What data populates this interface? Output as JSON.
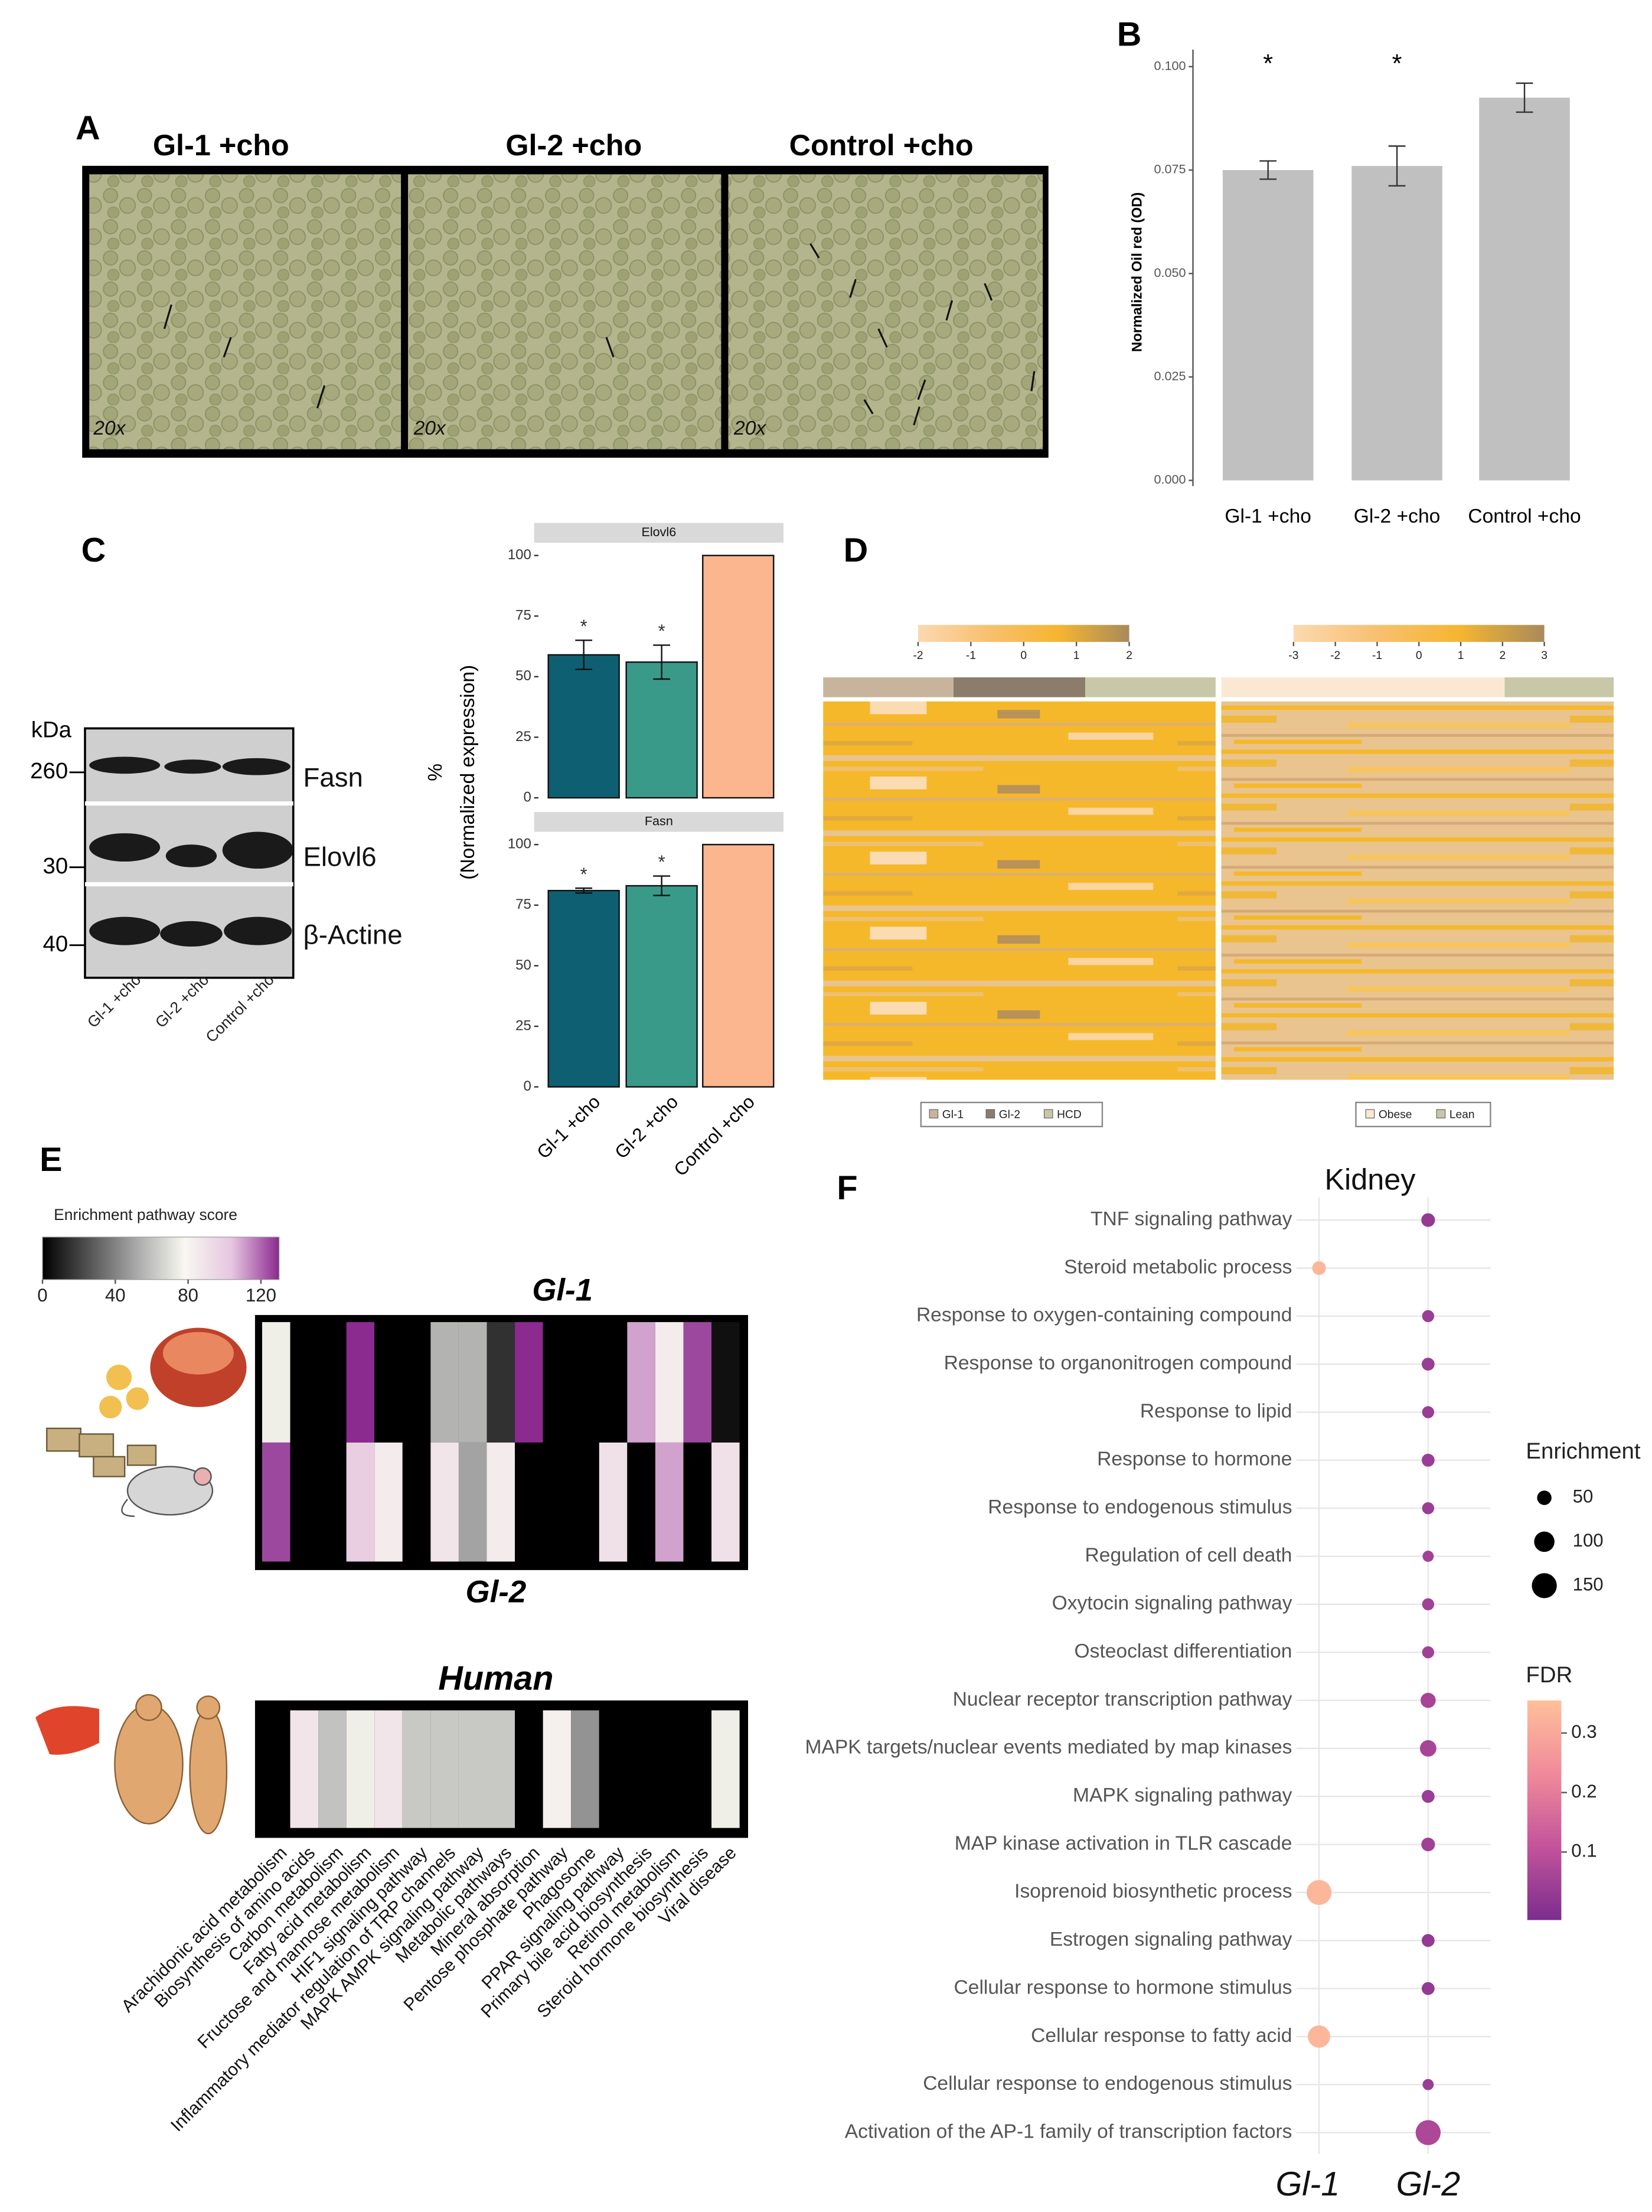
{
  "panel_labels": [
    "A",
    "B",
    "C",
    "D",
    "E",
    "F"
  ],
  "panel_a": {
    "titles": [
      "Gl-1 +cho",
      "Gl-2 +cho",
      "Control +cho"
    ],
    "magnification": "20x"
  },
  "blot": {
    "unit": "kDa",
    "markers": [
      "260",
      "30",
      "40"
    ],
    "bands": [
      "Fasn",
      "Elovl6",
      "β-Actine"
    ],
    "lanes": [
      "Gl-1 +cho",
      "Gl-2 +cho",
      "Control +cho"
    ]
  },
  "chart_data": [
    {
      "type": "bar",
      "ylabel": "Normalized Oil red (OD)",
      "categories": [
        "Gl-1 +cho",
        "Gl-2 +cho",
        "Control +cho"
      ],
      "values": [
        0.075,
        0.076,
        0.0925
      ],
      "errors": [
        0.0022,
        0.0048,
        0.0035
      ],
      "annotations": [
        "*",
        "*",
        null
      ],
      "color": "#c0c0c0",
      "ylim": [
        0,
        0.1
      ],
      "yticks": [
        {
          "value": 0,
          "label": "0.000"
        },
        0.025,
        {
          "value": 0.05,
          "label": "0.050"
        },
        0.075,
        {
          "value": 0.1,
          "label": "0.100"
        }
      ]
    },
    {
      "type": "facet_bar",
      "ylabel": [
        "%",
        "(Normalized expression)"
      ],
      "categories": [
        "Gl-1 +cho",
        "Gl-2 +cho",
        "Control +cho"
      ],
      "colors": [
        "#0f5f73",
        "#3a9a8a",
        "#fbb58f"
      ],
      "facets": [
        {
          "title": "Elovl6",
          "values": [
            59,
            56,
            100
          ],
          "errors": [
            6,
            7,
            null
          ],
          "annotations": [
            "*",
            "*",
            null
          ]
        },
        {
          "title": "Fasn",
          "values": [
            81,
            83,
            100
          ],
          "errors": [
            1,
            4,
            null
          ],
          "annotations": [
            "*",
            "*",
            null
          ]
        }
      ],
      "ylim": [
        0,
        100
      ],
      "yticks": [
        0,
        25,
        50,
        75,
        100
      ]
    },
    {
      "type": "expression_heatmap",
      "colormap": [
        "#fbd9b0",
        "#f8c070",
        "#f5b530",
        "#a88a5a"
      ],
      "colorbars": [
        {
          "lim": [
            -2,
            2
          ],
          "ticks": [
            -2,
            -1,
            0,
            1,
            2
          ]
        },
        {
          "lim": [
            -3,
            3
          ],
          "ticks": [
            -3,
            -2,
            -1,
            0,
            1,
            2,
            3
          ]
        }
      ],
      "legends": [
        {
          "names": [
            "Gl-1",
            "Gl-2",
            "HCD"
          ],
          "colors": [
            "#c8b49c",
            "#8c7c6c",
            "#c8c8a8"
          ]
        },
        {
          "names": [
            "Obese",
            "Lean"
          ],
          "colors": [
            "#fbe8d4",
            "#c8c8a8"
          ]
        }
      ]
    },
    {
      "type": "pathway_heatmap",
      "colorbar_title": "Enrichment pathway score",
      "clim": [
        0,
        130
      ],
      "cticks": [
        0,
        40,
        80,
        120
      ],
      "colormap": [
        "#000000",
        "#555555",
        "#aaaaaa",
        "#f8f8f0",
        "#e6c6e0",
        "#8b2a8f"
      ],
      "categories": [
        "Arachidonic acid metabolism",
        "Biosynthesis of amino acids",
        "Carbon metabolism",
        "Fatty acid metabolism",
        "Fructose and mannose metabolism",
        "HIF1 signaling pathway",
        "Inflammatory mediator regulation of TRP channels",
        "MAPK AMPK signaling pathway",
        "Metabolic pathways",
        "Mineral absorption",
        "Pentose phosphate pathway",
        "Phagosome",
        "PPAR signaling pathway",
        "Primary bile acid biosynthesis",
        "Retinol metabolism",
        "Steroid hormone biosynthesis",
        "Viral disease"
      ],
      "rows": [
        {
          "name": "Gl-1",
          "values": [
            75,
            0,
            0,
            130,
            0,
            0,
            55,
            55,
            15,
            135,
            0,
            0,
            0,
            110,
            85,
            125,
            5
          ]
        },
        {
          "name": "Gl-2",
          "values": [
            125,
            0,
            0,
            100,
            85,
            0,
            88,
            50,
            85,
            0,
            0,
            0,
            90,
            0,
            110,
            0,
            90
          ]
        },
        {
          "name": "Human",
          "values": [
            0,
            88,
            60,
            75,
            88,
            62,
            62,
            62,
            62,
            0,
            82,
            45,
            0,
            0,
            0,
            0,
            75
          ]
        }
      ]
    },
    {
      "type": "dot",
      "title": "Kidney",
      "categories": [
        "TNF signaling pathway",
        "Steroid metabolic process",
        "Response to oxygen-containing compound",
        "Response to organonitrogen compound",
        "Response to lipid",
        "Response to hormone",
        "Response to endogenous stimulus",
        "Regulation of cell death",
        "Oxytocin signaling pathway",
        "Osteoclast differentiation",
        "Nuclear receptor transcription pathway",
        "MAPK targets/nuclear events mediated by map kinases",
        "MAPK signaling pathway",
        "MAP kinase activation in TLR cascade",
        "Isoprenoid biosynthetic process",
        "Estrogen signaling pathway",
        "Cellular response to hormone stimulus",
        "Cellular response to fatty acid",
        "Cellular response to endogenous stimulus",
        "Activation of the AP-1 family of transcription factors"
      ],
      "series": [
        {
          "name": "Gl-1",
          "enrichment": [
            null,
            45,
            null,
            null,
            null,
            null,
            null,
            null,
            null,
            null,
            null,
            null,
            null,
            null,
            150,
            null,
            null,
            120,
            null,
            null
          ],
          "fdr": [
            null,
            0.33,
            null,
            null,
            null,
            null,
            null,
            null,
            null,
            null,
            null,
            null,
            null,
            null,
            0.33,
            null,
            null,
            0.33,
            null,
            null
          ]
        },
        {
          "name": "Gl-2",
          "enrichment": [
            45,
            null,
            35,
            40,
            35,
            40,
            35,
            30,
            35,
            35,
            55,
            65,
            40,
            45,
            null,
            40,
            40,
            null,
            30,
            150
          ],
          "fdr": [
            0.04,
            null,
            0.05,
            0.05,
            0.05,
            0.05,
            0.05,
            0.06,
            0.06,
            0.06,
            0.07,
            0.07,
            0.05,
            0.06,
            null,
            0.04,
            0.04,
            null,
            0.05,
            0.08
          ]
        }
      ],
      "size_title": "Enrichment",
      "size_ticks": [
        50,
        100,
        150
      ],
      "color_title": "FDR",
      "clim": [
        0,
        0.35
      ],
      "cticks": [
        0.1,
        0.2,
        0.3
      ],
      "colormap": [
        "#7b2d8e",
        "#c4539b",
        "#f08a9a",
        "#ffc09a"
      ]
    }
  ]
}
